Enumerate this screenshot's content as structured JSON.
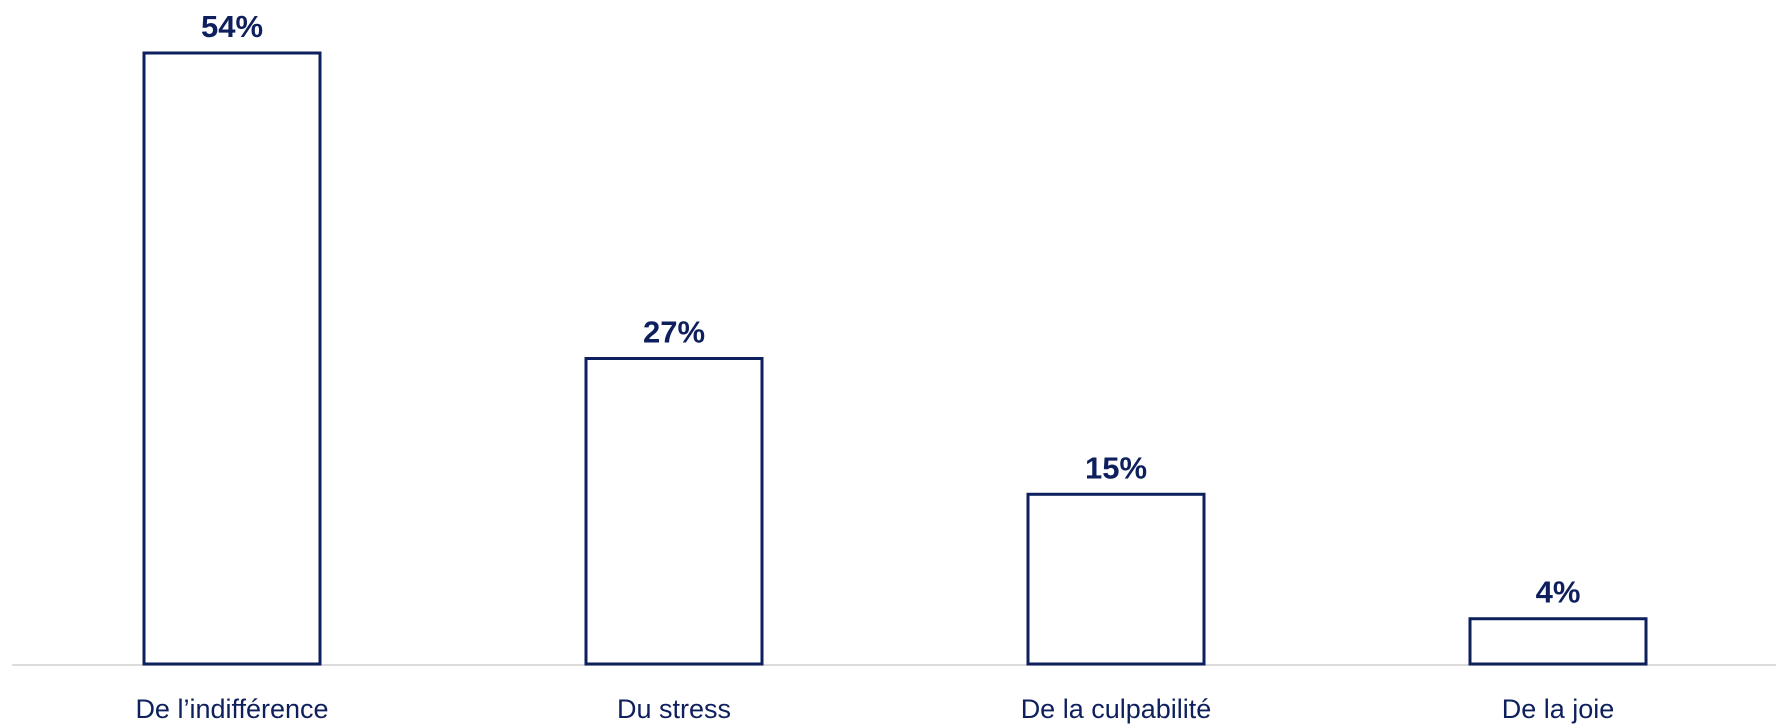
{
  "chart_data": {
    "type": "bar",
    "categories": [
      "De l’indifférence",
      "Du stress",
      "De la culpabilité",
      "De la joie"
    ],
    "values": [
      54,
      27,
      15,
      4
    ],
    "value_labels": [
      "54%",
      "27%",
      "15%",
      "4%"
    ],
    "unit": "%",
    "title": "",
    "xlabel": "",
    "ylabel": "",
    "ylim": [
      0,
      54
    ],
    "grid": false,
    "legend": "none",
    "colors": {
      "bar_fill": "#ffffff",
      "bar_stroke": "#0d1f5c",
      "text": "#0d1f5c",
      "axis": "#d0d0d0"
    }
  }
}
